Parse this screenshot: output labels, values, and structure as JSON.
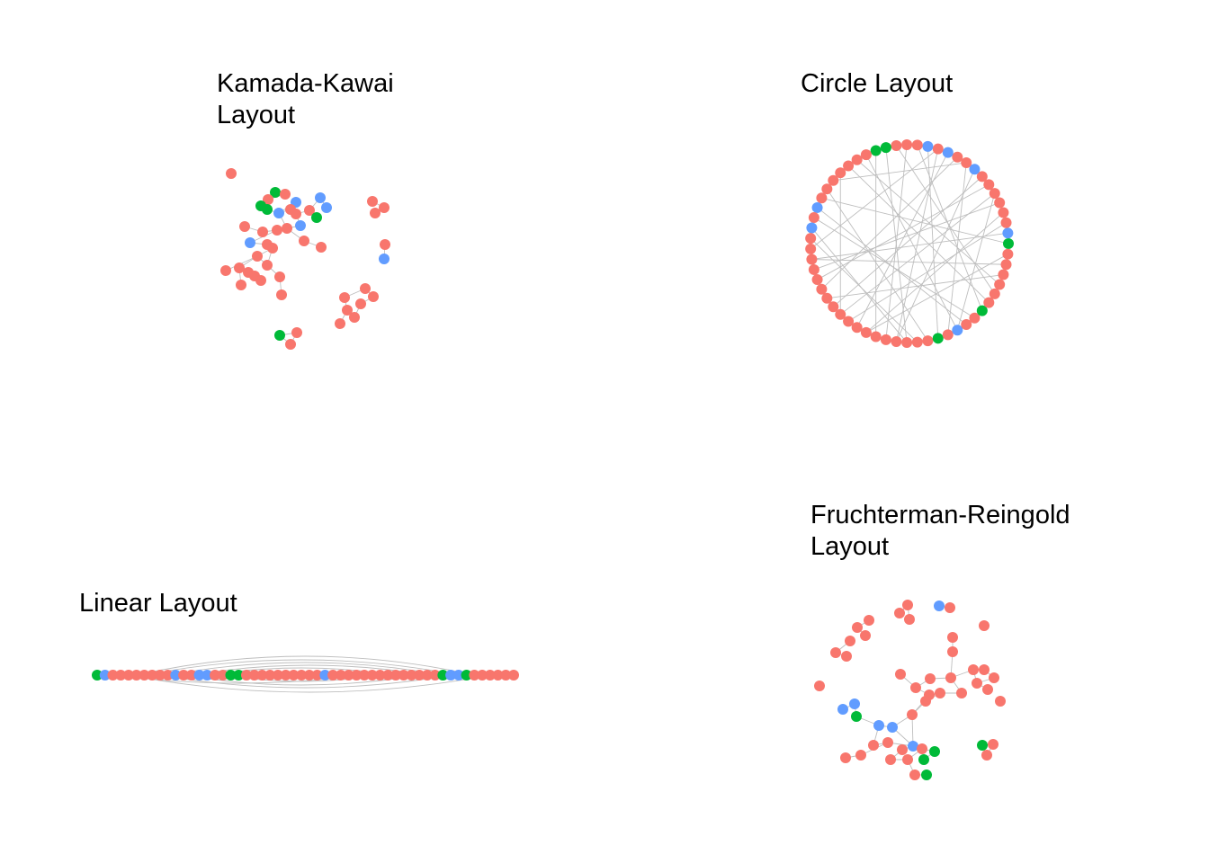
{
  "colors": {
    "red": "#F8766D",
    "green": "#00BA38",
    "blue": "#619CFF",
    "edge": "#BEBEBE",
    "background": "#FFFFFF"
  },
  "panels": {
    "kamada_kawai": {
      "title_lines": [
        "Kamada-Kawai",
        "Layout"
      ]
    },
    "circle": {
      "title_lines": [
        "Circle Layout"
      ]
    },
    "linear": {
      "title_lines": [
        "Linear Layout"
      ]
    },
    "fruchterman_reingold": {
      "title_lines": [
        "Fruchterman-Reingold",
        "Layout"
      ]
    }
  },
  "network": {
    "node_colors": "rrrrrrrggrrrbbrrrbrrrrrrrrrbrrrrrrrrrrrrrrrrrgrrbrgrrbrrrrrrrrrrrrrrrrgrbbgrrrbrrr"
  }
}
